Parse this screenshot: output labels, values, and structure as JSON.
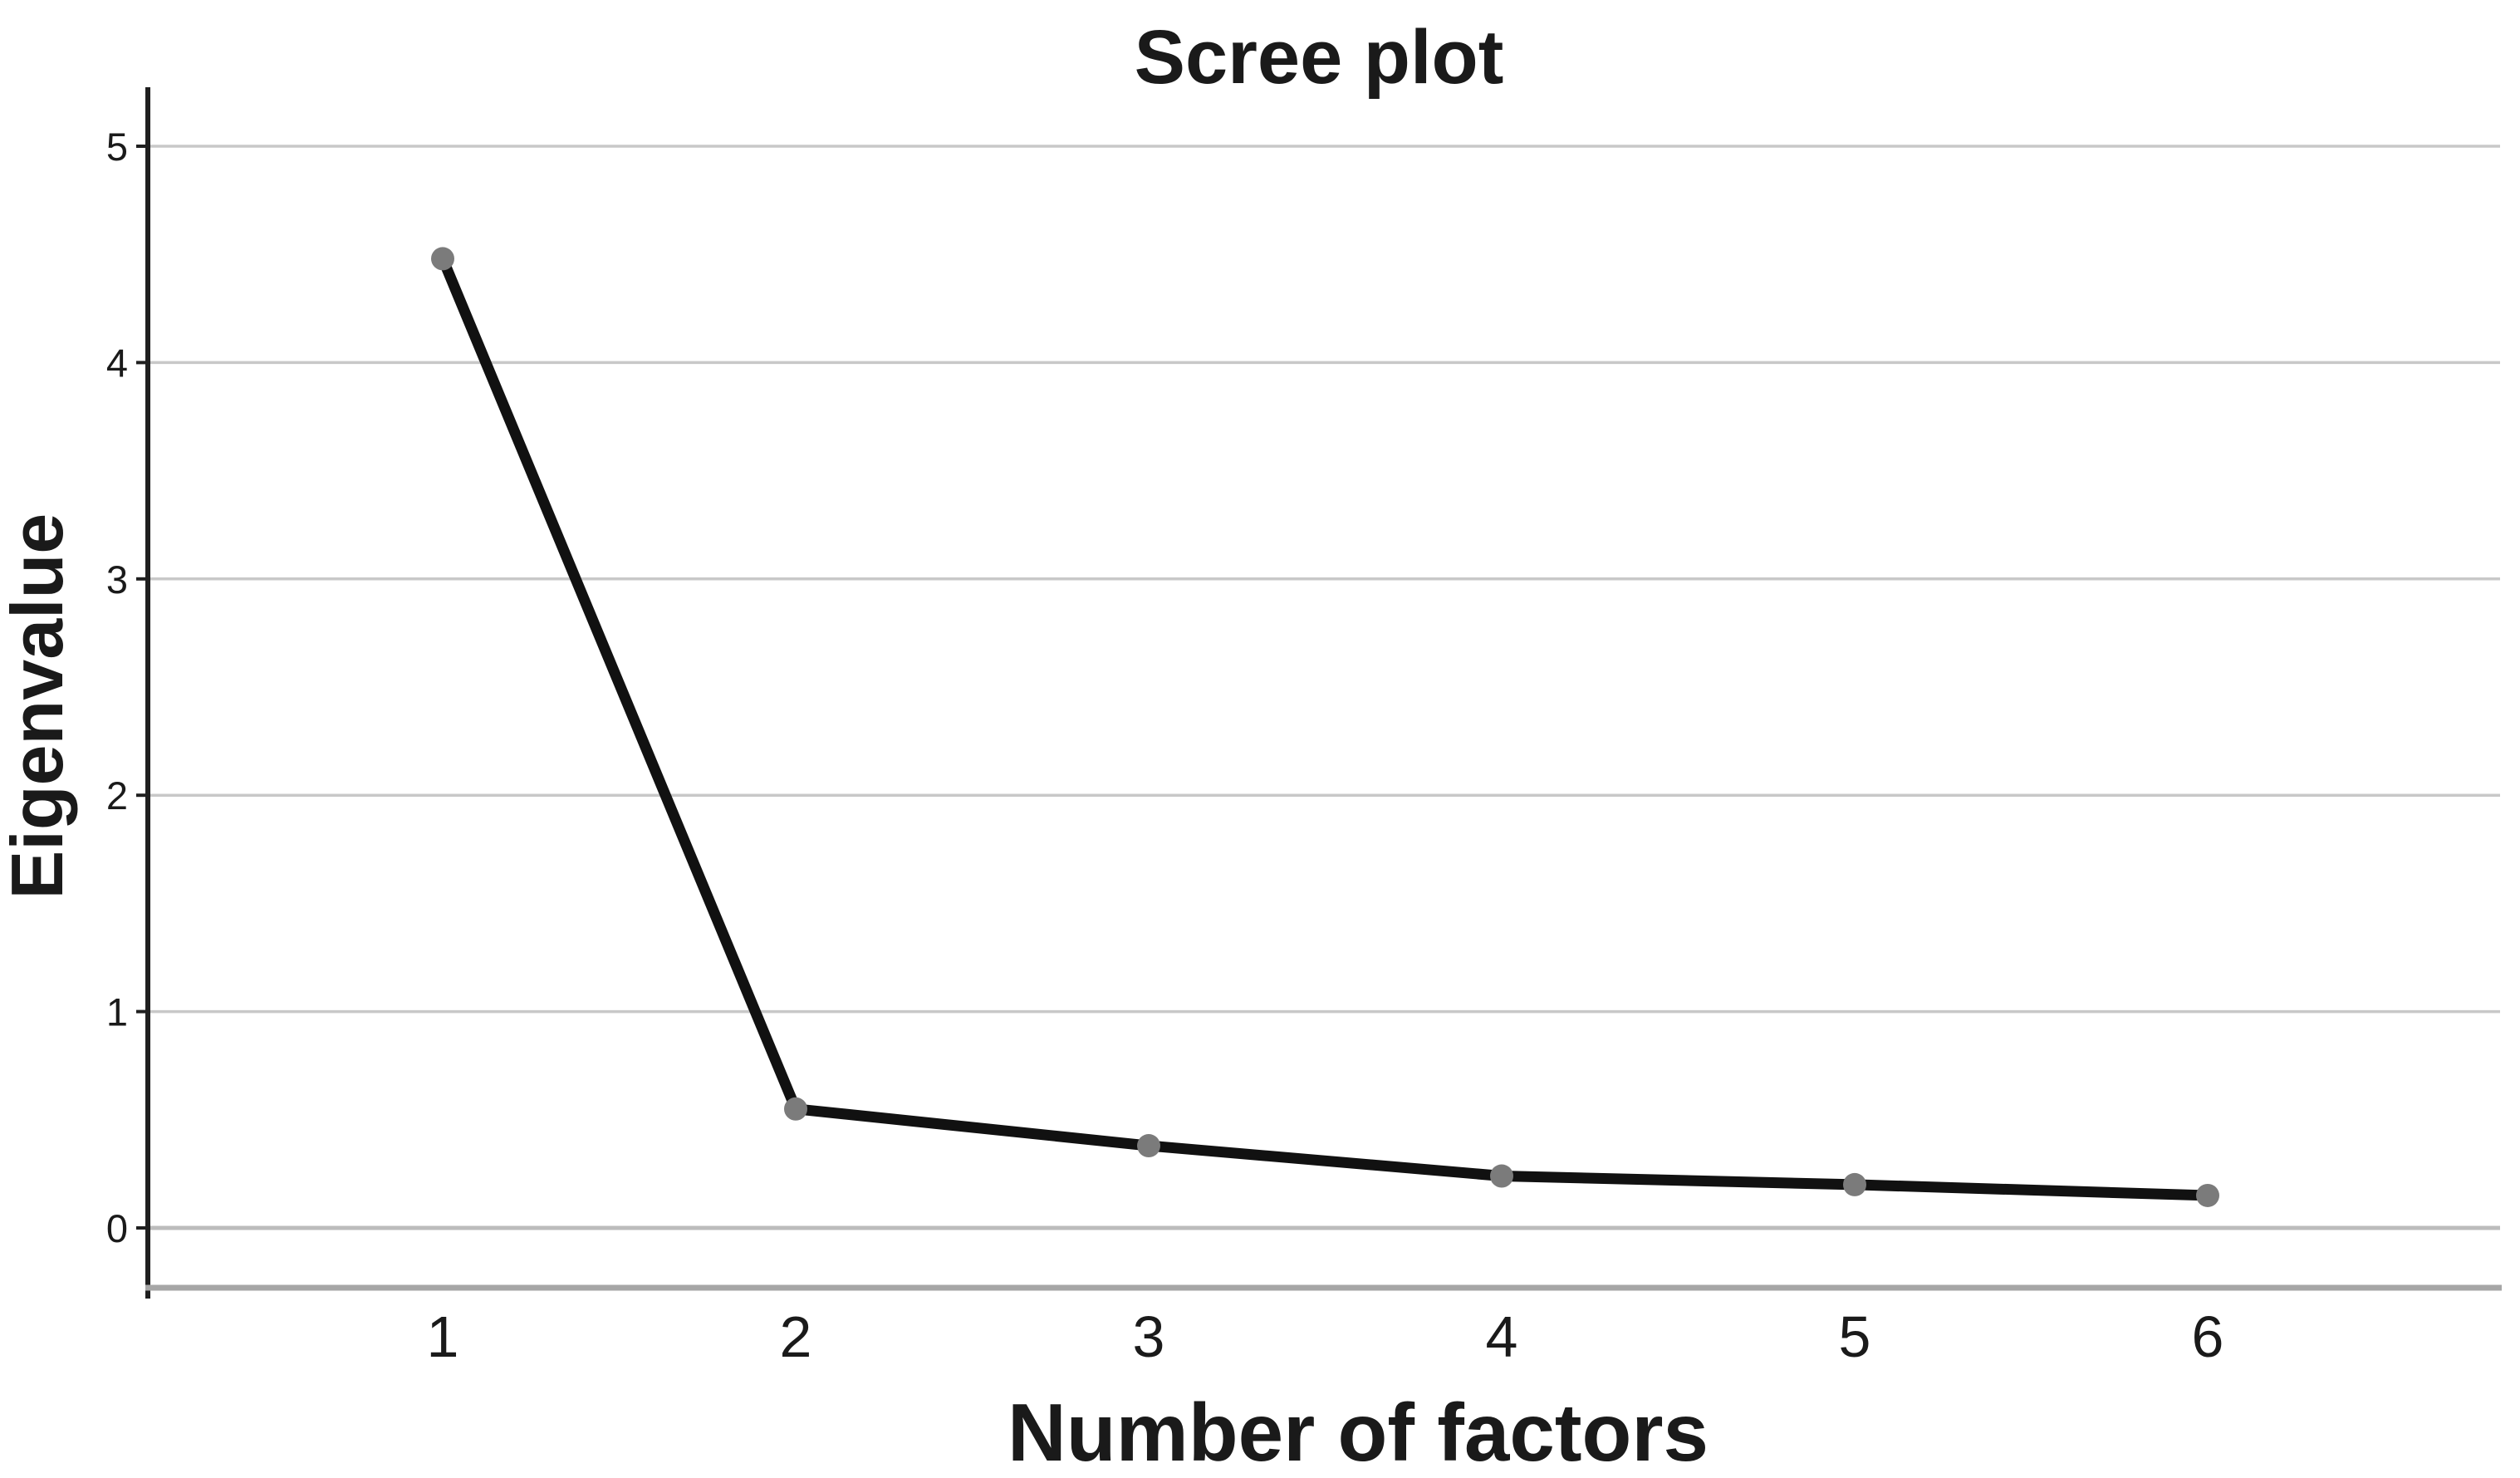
{
  "title": "Scree plot",
  "y_axis": {
    "label": "Eigenvalue",
    "ticks": [
      5,
      4,
      3,
      2,
      1,
      0
    ]
  },
  "x_axis": {
    "label": "Number of factors",
    "ticks": [
      1,
      2,
      3,
      4,
      5,
      6
    ]
  },
  "chart_data": {
    "type": "line",
    "title": "Scree plot",
    "xlabel": "Number of factors",
    "ylabel": "Eigenvalue",
    "x": [
      1,
      2,
      3,
      4,
      5,
      6
    ],
    "values": [
      4.48,
      0.55,
      0.38,
      0.24,
      0.2,
      0.15
    ],
    "ylim": [
      0,
      5
    ],
    "y_ticks": [
      0,
      1,
      2,
      3,
      4,
      5
    ],
    "grid": "horizontal",
    "legend": "none",
    "colors": {
      "line": "#111111",
      "marker": "#7b7b7b",
      "gridline": "#c8c8c8",
      "zero_gridline": "#bcbcbc",
      "frame": "#a6a6a6",
      "axis": "#1f1f1f",
      "text": "#1a1a1a"
    }
  }
}
